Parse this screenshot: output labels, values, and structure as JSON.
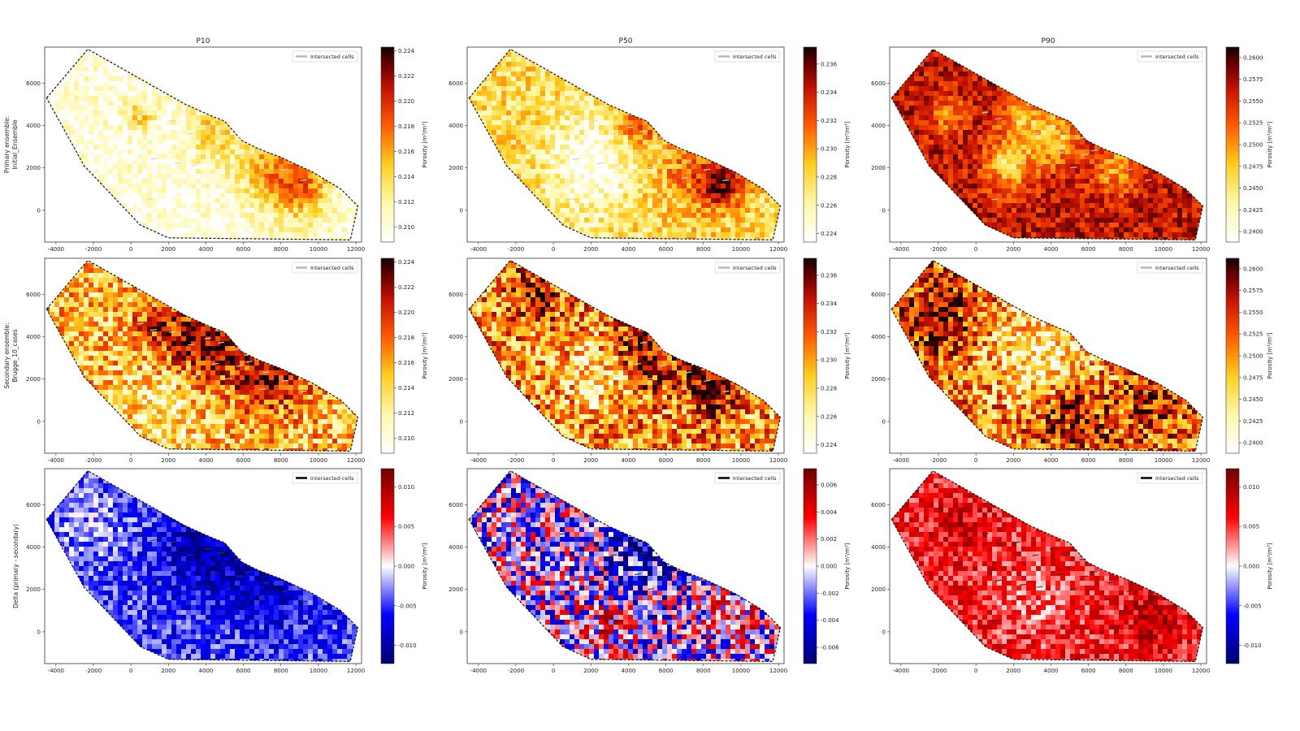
{
  "figure": {
    "column_titles": [
      "P10",
      "P50",
      "P90"
    ],
    "row_labels": [
      [
        "Primary ensemble:",
        "Initial_Ensemble"
      ],
      [
        "Secondary ensemble:",
        "Brugge_10_cases"
      ],
      [
        "Delta (primary - secondary)"
      ]
    ],
    "colorbar_label": "Porosity [m³/m³]",
    "legend_label": "Intersected cells"
  },
  "chart_data": [
    {
      "type": "heatmap",
      "row": 0,
      "col": 0,
      "title": "P10",
      "colormap": "hot_r",
      "clim": [
        0.2088,
        0.2243
      ],
      "cbar_ticks": [
        0.21,
        0.212,
        0.214,
        0.216,
        0.218,
        0.22,
        0.222,
        0.224
      ],
      "cbar_tick_labels": [
        "0.210",
        "0.212",
        "0.214",
        "0.216",
        "0.218",
        "0.220",
        "0.222",
        "0.224"
      ],
      "legend_color": "#a8bccb",
      "field": {
        "base": 0.08,
        "amp": 0.15,
        "blobs": [
          [
            9000,
            1300,
            1200,
            0.5
          ],
          [
            4300,
            3700,
            900,
            0.3
          ],
          [
            7000,
            2000,
            1200,
            0.28
          ],
          [
            500,
            4500,
            500,
            0.3
          ]
        ]
      }
    },
    {
      "type": "heatmap",
      "row": 0,
      "col": 1,
      "title": "P50",
      "colormap": "hot_r",
      "clim": [
        0.2234,
        0.2372
      ],
      "cbar_ticks": [
        0.224,
        0.226,
        0.228,
        0.23,
        0.232,
        0.234,
        0.236
      ],
      "cbar_tick_labels": [
        "0.224",
        "0.226",
        "0.228",
        "0.230",
        "0.232",
        "0.234",
        "0.236"
      ],
      "legend_color": "#a8bccb",
      "field": {
        "base": 0.32,
        "amp": 0.18,
        "blobs": [
          [
            9000,
            1300,
            900,
            0.55
          ],
          [
            4500,
            4100,
            800,
            0.35
          ],
          [
            2000,
            2200,
            1600,
            -0.3
          ],
          [
            7000,
            1800,
            1200,
            0.2
          ]
        ]
      }
    },
    {
      "type": "heatmap",
      "row": 0,
      "col": 2,
      "title": "P90",
      "colormap": "hot_r",
      "clim": [
        0.2388,
        0.2612
      ],
      "cbar_ticks": [
        0.24,
        0.2425,
        0.245,
        0.2475,
        0.25,
        0.2525,
        0.255,
        0.2575,
        0.26
      ],
      "cbar_tick_labels": [
        "0.2400",
        "0.2425",
        "0.2450",
        "0.2475",
        "0.2500",
        "0.2525",
        "0.2550",
        "0.2575",
        "0.2600"
      ],
      "legend_color": "#a8bccb",
      "field": {
        "base": 0.78,
        "amp": 0.16,
        "blobs": [
          [
            1800,
            2200,
            900,
            -0.45
          ],
          [
            4300,
            3400,
            900,
            -0.4
          ],
          [
            2500,
            4500,
            800,
            -0.35
          ],
          [
            7500,
            2000,
            900,
            -0.3
          ],
          [
            -1500,
            4500,
            700,
            -0.25
          ]
        ]
      }
    },
    {
      "type": "heatmap",
      "row": 1,
      "col": 0,
      "title": "",
      "colormap": "hot_r",
      "clim": [
        0.2088,
        0.2243
      ],
      "cbar_ticks": [
        0.21,
        0.212,
        0.214,
        0.216,
        0.218,
        0.22,
        0.222,
        0.224
      ],
      "cbar_tick_labels": [
        "0.210",
        "0.212",
        "0.214",
        "0.216",
        "0.218",
        "0.220",
        "0.222",
        "0.224"
      ],
      "legend_color": "#a8bccb",
      "field": {
        "base": 0.4,
        "amp": 0.3,
        "blobs": [
          [
            4000,
            3700,
            1500,
            0.45
          ],
          [
            7500,
            2200,
            1400,
            0.4
          ],
          [
            1500,
            4500,
            1000,
            0.25
          ],
          [
            2000,
            800,
            1500,
            -0.2
          ]
        ]
      }
    },
    {
      "type": "heatmap",
      "row": 1,
      "col": 1,
      "title": "",
      "colormap": "hot_r",
      "clim": [
        0.2234,
        0.2372
      ],
      "cbar_ticks": [
        0.224,
        0.226,
        0.228,
        0.23,
        0.232,
        0.234,
        0.236
      ],
      "cbar_tick_labels": [
        "0.224",
        "0.226",
        "0.228",
        "0.230",
        "0.232",
        "0.234",
        "0.236"
      ],
      "legend_color": "#a8bccb",
      "field": {
        "base": 0.5,
        "amp": 0.35,
        "blobs": [
          [
            5000,
            3500,
            1500,
            0.35
          ],
          [
            8500,
            1600,
            900,
            0.4
          ],
          [
            -1000,
            6000,
            1000,
            0.3
          ],
          [
            2500,
            2200,
            1200,
            -0.3
          ]
        ]
      }
    },
    {
      "type": "heatmap",
      "row": 1,
      "col": 2,
      "title": "",
      "colormap": "hot_r",
      "clim": [
        0.2388,
        0.2612
      ],
      "cbar_ticks": [
        0.24,
        0.2425,
        0.245,
        0.2475,
        0.25,
        0.2525,
        0.255,
        0.2575,
        0.26
      ],
      "cbar_tick_labels": [
        "0.2400",
        "0.2425",
        "0.2450",
        "0.2475",
        "0.2500",
        "0.2525",
        "0.2550",
        "0.2575",
        "0.2600"
      ],
      "legend_color": "#a8bccb",
      "field": {
        "base": 0.55,
        "amp": 0.35,
        "blobs": [
          [
            3500,
            3000,
            1800,
            -0.4
          ],
          [
            -2000,
            5000,
            1100,
            0.35
          ],
          [
            5000,
            400,
            1300,
            0.35
          ],
          [
            9500,
            1000,
            1000,
            0.25
          ]
        ]
      }
    },
    {
      "type": "heatmap",
      "row": 2,
      "col": 0,
      "title": "",
      "colormap": "bwr",
      "clim": [
        -0.0123,
        0.0123
      ],
      "cbar_ticks": [
        -0.01,
        -0.005,
        0.0,
        0.005,
        0.01
      ],
      "cbar_tick_labels": [
        "-0.010",
        "-0.005",
        "0.000",
        "0.005",
        "0.010"
      ],
      "legend_color": "#000000",
      "field": {
        "base": 0.3,
        "amp": 0.15,
        "blobs": [
          [
            4000,
            3700,
            1600,
            -0.2
          ],
          [
            7500,
            2000,
            1300,
            -0.15
          ],
          [
            -2000,
            5000,
            1200,
            0.12
          ]
        ]
      }
    },
    {
      "type": "heatmap",
      "row": 2,
      "col": 1,
      "title": "",
      "colormap": "bwr",
      "clim": [
        -0.0072,
        0.0072
      ],
      "cbar_ticks": [
        -0.006,
        -0.004,
        -0.002,
        0.0,
        0.002,
        0.004,
        0.006
      ],
      "cbar_tick_labels": [
        "-0.006",
        "-0.004",
        "-0.002",
        "0.000",
        "0.002",
        "0.004",
        "0.006"
      ],
      "legend_color": "#000000",
      "field": {
        "base": 0.45,
        "amp": 0.35,
        "blobs": [
          [
            4500,
            3500,
            1400,
            -0.25
          ],
          [
            3000,
            500,
            1000,
            0.2
          ],
          [
            9500,
            500,
            900,
            0.2
          ]
        ]
      }
    },
    {
      "type": "heatmap",
      "row": 2,
      "col": 2,
      "title": "",
      "colormap": "bwr",
      "clim": [
        -0.0123,
        0.0123
      ],
      "cbar_ticks": [
        -0.01,
        -0.005,
        0.0,
        0.005,
        0.01
      ],
      "cbar_tick_labels": [
        "-0.010",
        "-0.005",
        "0.000",
        "0.005",
        "0.010"
      ],
      "legend_color": "#000000",
      "field": {
        "base": 0.74,
        "amp": 0.15,
        "blobs": [
          [
            9500,
            600,
            1000,
            0.12
          ],
          [
            3000,
            1500,
            1500,
            -0.1
          ],
          [
            -1000,
            5000,
            1000,
            0.08
          ]
        ]
      }
    }
  ],
  "axes": {
    "xlim": [
      -4600,
      12300
    ],
    "ylim": [
      -1500,
      7700
    ],
    "x_ticks": [
      -4000,
      -2000,
      0,
      2000,
      4000,
      6000,
      8000,
      10000,
      12000
    ],
    "x_tick_labels": [
      "-4000",
      "-2000",
      "0",
      "2000",
      "4000",
      "6000",
      "8000",
      "10000",
      "12000"
    ],
    "y_ticks": [
      0,
      2000,
      4000,
      6000
    ],
    "y_tick_labels": [
      "0",
      "2000",
      "4000",
      "6000"
    ],
    "outline": [
      [
        -4500,
        5300
      ],
      [
        -2300,
        7600
      ],
      [
        1500,
        5700
      ],
      [
        2900,
        5000
      ],
      [
        4300,
        4450
      ],
      [
        5000,
        4200
      ],
      [
        5900,
        3300
      ],
      [
        6800,
        2900
      ],
      [
        8000,
        2500
      ],
      [
        9700,
        1800
      ],
      [
        11200,
        1000
      ],
      [
        12100,
        200
      ],
      [
        11700,
        -1400
      ],
      [
        7000,
        -1350
      ],
      [
        2000,
        -1300
      ],
      [
        500,
        -700
      ],
      [
        -2500,
        2100
      ],
      [
        -4500,
        5300
      ]
    ],
    "wells": [
      [
        500,
        4600
      ],
      [
        1200,
        4300
      ],
      [
        2200,
        4200
      ],
      [
        3200,
        3600
      ],
      [
        4100,
        3900
      ],
      [
        4800,
        3700
      ],
      [
        5700,
        3400
      ],
      [
        6300,
        2800
      ],
      [
        4500,
        2700
      ],
      [
        2500,
        2200
      ],
      [
        1200,
        2400
      ],
      [
        3400,
        2100
      ],
      [
        5200,
        2000
      ],
      [
        7200,
        2300
      ],
      [
        8200,
        1900
      ],
      [
        9200,
        1400
      ],
      [
        7000,
        1500
      ],
      [
        5800,
        2600
      ],
      [
        1000,
        500
      ]
    ]
  }
}
